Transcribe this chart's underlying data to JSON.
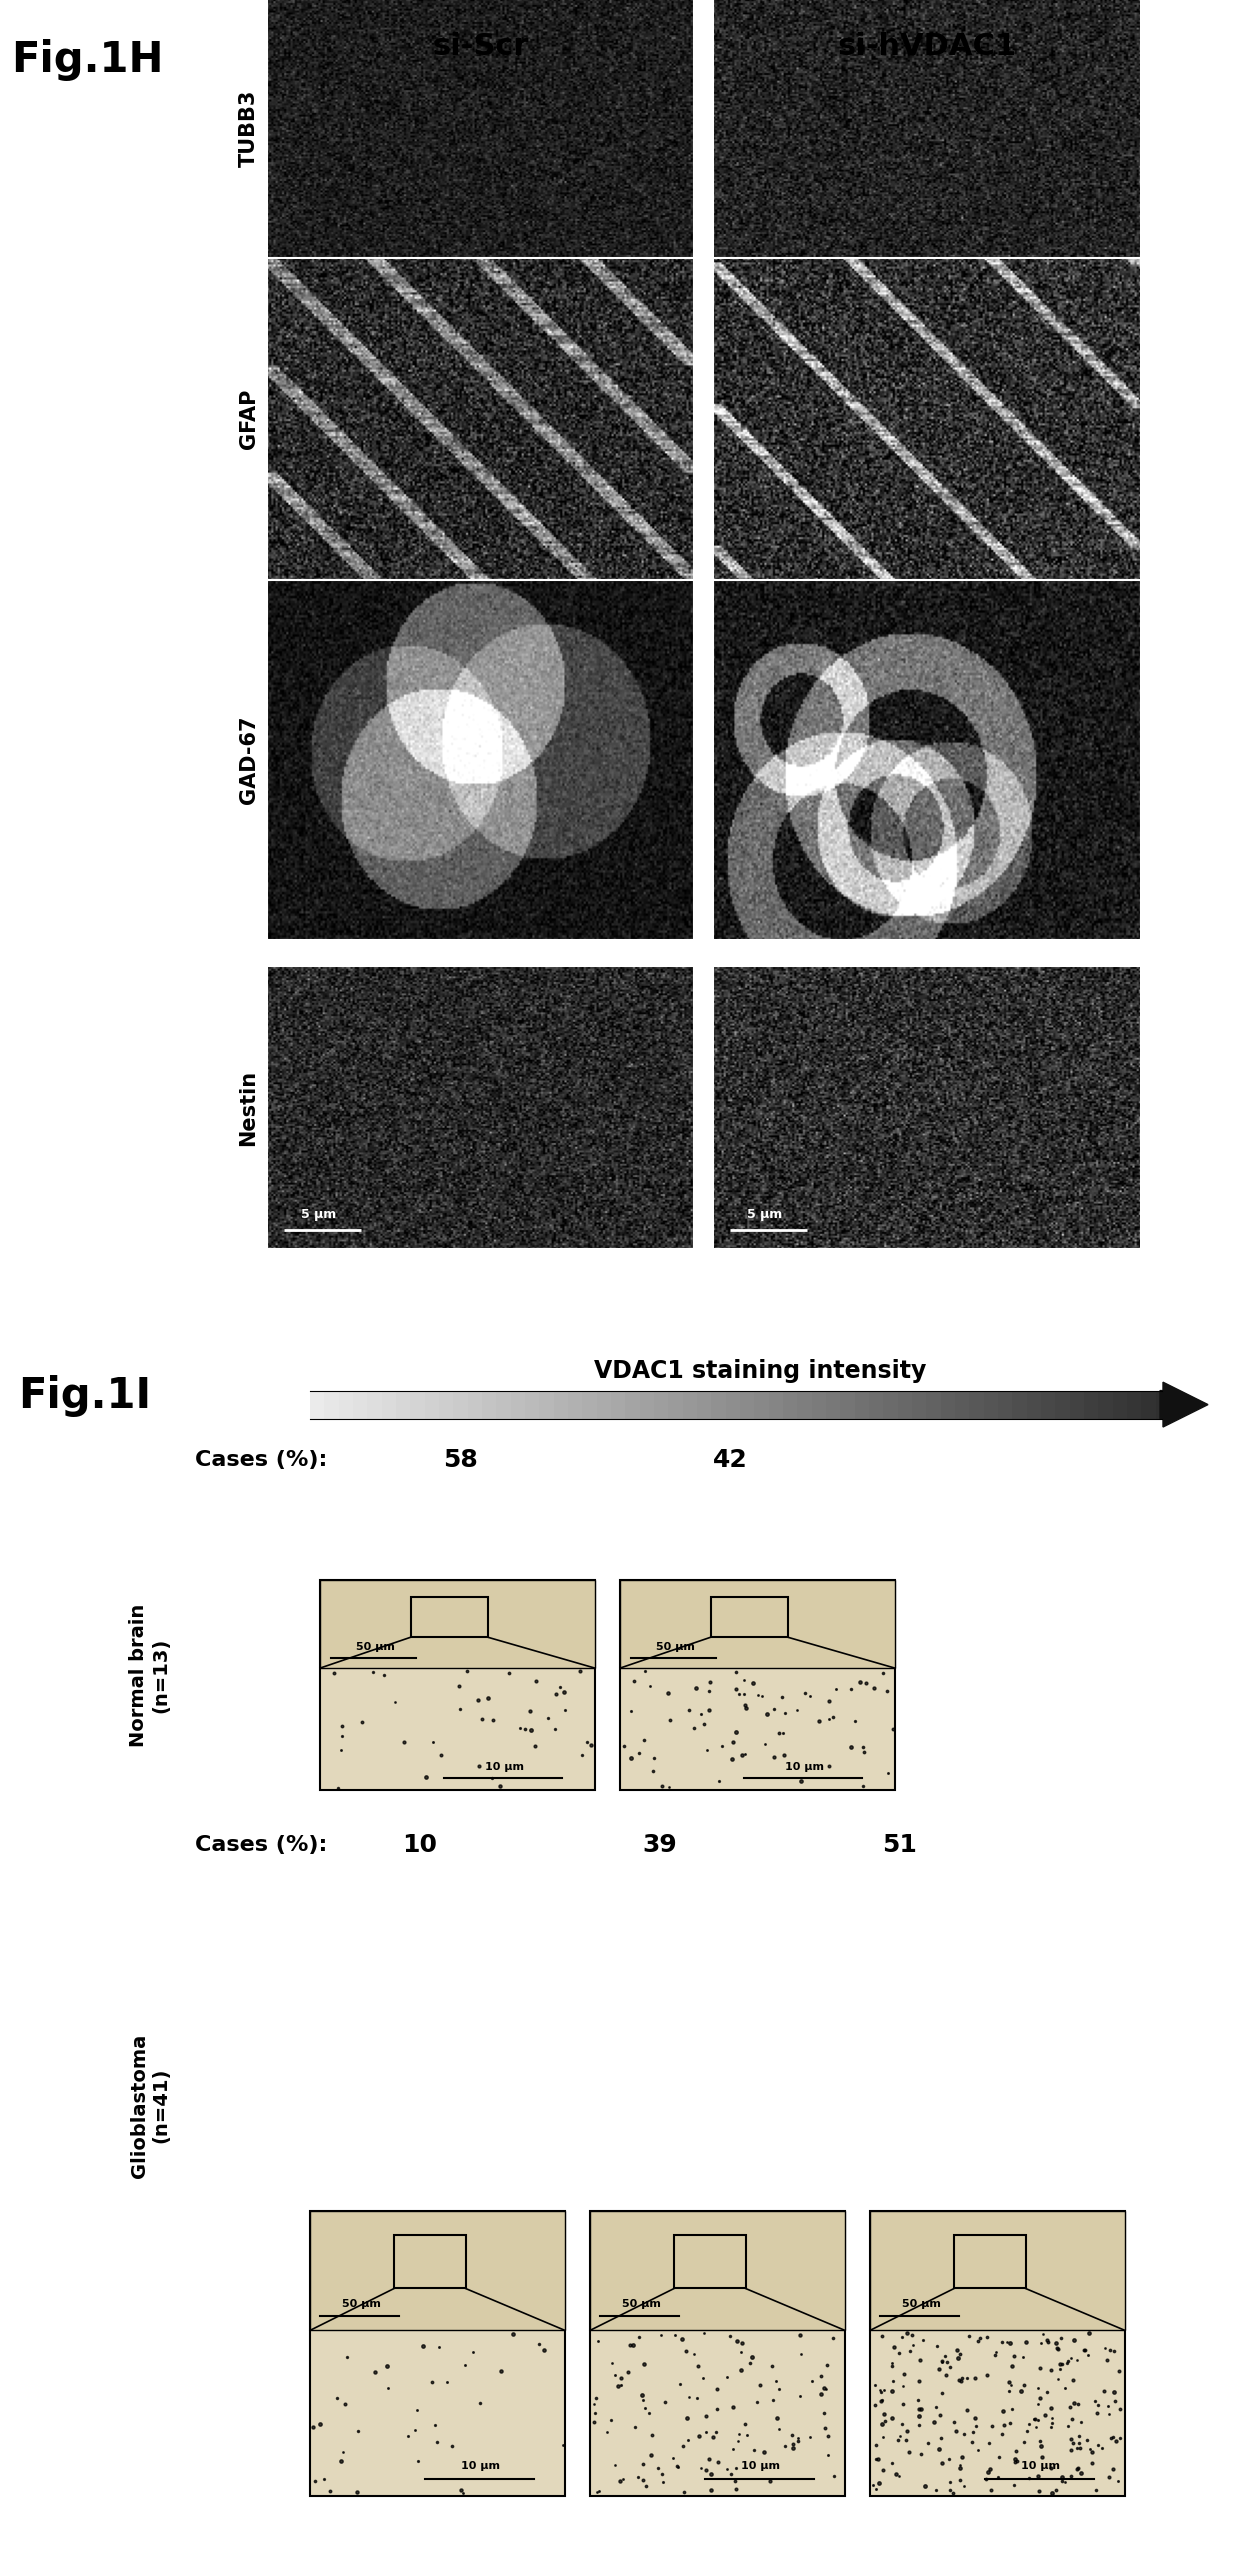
{
  "fig_label_H": "Fig.1H",
  "fig_label_I": "Fig.1I",
  "col_labels_H": [
    "si-Scr",
    "si-hVDAC1"
  ],
  "row_labels_H": [
    "TUBB3",
    "GFAP",
    "GAD-67",
    "Nestin"
  ],
  "scale_bar_H": "5 μm",
  "vdac1_label": "VDAC1 staining intensity",
  "cases_normal_label": "Cases (%):",
  "cases_normal_values": [
    "58",
    "42"
  ],
  "normal_brain_label": "Normal brain\n(n=13)",
  "cases_glio_label": "Cases (%):",
  "cases_glio_values": [
    "10",
    "39",
    "51"
  ],
  "glio_label": "Glioblastoma\n(n=41)",
  "scale_50um": "50 μm",
  "scale_10um": "10 μm"
}
